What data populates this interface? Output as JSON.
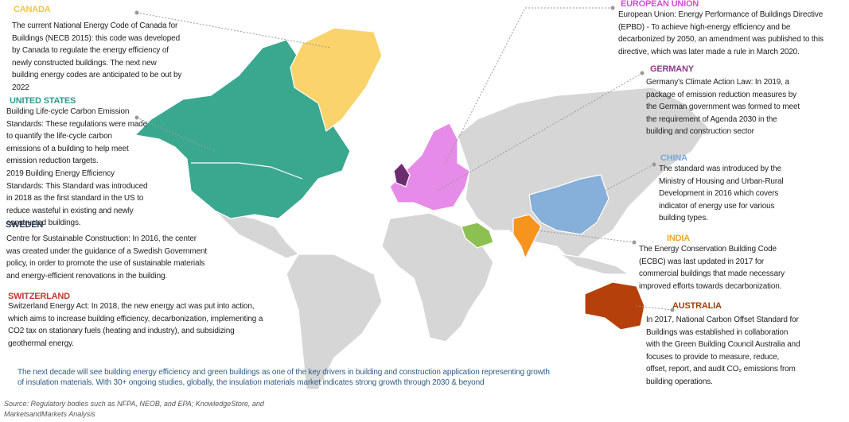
{
  "regions": [
    {
      "title": "CANADA",
      "lines": [
        "The current National Energy Code of Canada for",
        "Buildings (NECB 2015):  this code was developed",
        "by Canada to regulate the energy efficiency of",
        "newly constructed buildings. The next new",
        "building energy codes are anticipated to be out by",
        "2022"
      ]
    },
    {
      "title": "UNITED STATES",
      "lines": [
        "Building Life-cycle Carbon Emission",
        "Standards: These regulations were made",
        "to quantify the life-cycle carbon",
        "emissions of a building to help meet",
        "emission reduction targets.",
        "2019 Building Energy Efficiency",
        "Standards: This Standard was introduced",
        "in 2018 as the first standard in the US to",
        "reduce wasteful in existing and newly",
        "constructed buildings."
      ]
    },
    {
      "title": "SWEDEN",
      "lines": [
        "Centre for Sustainable Construction: In 2016, the center",
        "was created under the guidance of a Swedish Government",
        "policy, in order to promote the use of sustainable materials",
        "and energy-efficient renovations in the building."
      ]
    },
    {
      "title": "SWITZERLAND",
      "lines": [
        "Switzerland Energy Act: In 2018, the new energy act was put into action,",
        "which aims to increase building efficiency, decarbonization, implementing a",
        "CO2 tax on stationary fuels (heating and industry), and subsidizing",
        "geothermal energy."
      ]
    },
    {
      "title": "EUROPEAN UNION",
      "lines": [
        "European Union: Energy Performance of Buildings Directive",
        "(EPBD) - To achieve high-energy efficiency and be",
        "decarbonized by 2050, an amendment was published to this",
        "directive, which was later made a rule in March 2020."
      ]
    },
    {
      "title": "GERMANY",
      "lines": [
        "Germany's Climate Action Law: In 2019, a",
        "package of emission reduction measures by",
        "the German government was formed to meet",
        "the requirement of Agenda 2030 in the",
        "building and construction sector"
      ]
    },
    {
      "title": "CHINA",
      "lines": [
        "The standard was introduced by the",
        "Ministry of Housing and Urban-Rural",
        "Development in 2016 which covers",
        "indicator of energy use for various",
        "building types."
      ]
    },
    {
      "title": "INDIA",
      "lines": [
        "The Energy Conservation Building Code",
        "(ECBC) was last updated in 2017 for",
        "commercial buildings that made necessary",
        "improved efforts towards decarbonization."
      ]
    },
    {
      "title": "AUSTRALIA",
      "lines": [
        "In 2017, National Carbon Offset Standard for",
        "Buildings was established in collaboration",
        "with the Green Building Council Australia and",
        "focuses to provide to measure, reduce,",
        "offset, report, and audit CO₂ emissions from",
        "building operations."
      ]
    }
  ],
  "footer": [
    "The next decade will see building energy efficiency and green buildings as one of the key drivers in building and construction application representing growth",
    "of insulation materials. With 30+ ongoing studies, globally, the insulation materials market indicates strong growth through 2030 & beyond"
  ],
  "source": [
    "Source: Regulatory bodies such as NFPA, NEOB, and EPA; KnowledgeStore, and",
    "MarketsandMarkets Analysis"
  ]
}
